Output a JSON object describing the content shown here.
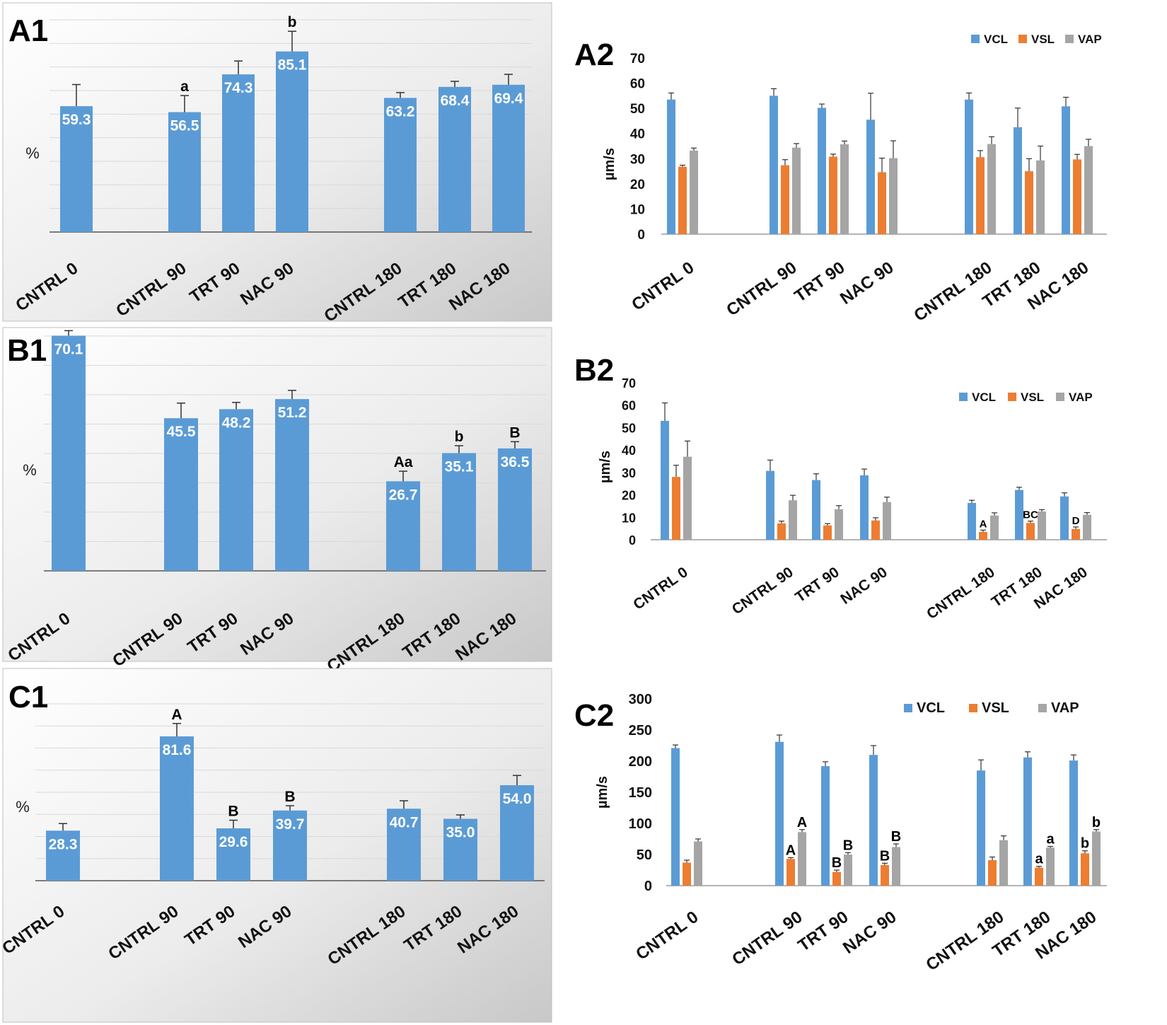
{
  "figure": {
    "colors": {
      "bar": "#5B9BD5",
      "vcl": "#5B9BD5",
      "vsl": "#ED7D31",
      "vap": "#A5A5A5",
      "grid": "#d9d9d9"
    },
    "y_unit_percent": "%",
    "y_unit_speed": "µm/s"
  },
  "chart_data": [
    {
      "id": "A1",
      "type": "bar",
      "title": "A1",
      "ylabel": "%",
      "ylim": [
        0,
        100
      ],
      "categories": [
        "CNTRL 0",
        "CNTRL 90",
        "TRT 90",
        "NAC 90",
        "CNTRL 180",
        "TRT 180",
        "NAC 180"
      ],
      "values": [
        59.3,
        56.5,
        74.3,
        85.1,
        63.2,
        68.4,
        69.4
      ],
      "value_labels": [
        "59.3",
        "56.5",
        "74.3",
        "85.1",
        "63.2",
        "68.4",
        "69.4"
      ],
      "errors": [
        10.2,
        7.8,
        6.3,
        9.5,
        2.5,
        2.6,
        4.9
      ],
      "significance": [
        "",
        "a",
        "",
        "b",
        "",
        "",
        ""
      ]
    },
    {
      "id": "A2",
      "type": "bar",
      "title": "A2",
      "ylabel": "µm/s",
      "ylim": [
        0,
        70
      ],
      "yticks": [
        "0",
        "10",
        "20",
        "30",
        "40",
        "50",
        "60",
        "70"
      ],
      "categories": [
        "CNTRL 0",
        "CNTRL 90",
        "TRT 90",
        "NAC 90",
        "CNTRL 180",
        "TRT 180",
        "NAC 180"
      ],
      "series": [
        {
          "name": "VCL",
          "values": [
            53.5,
            55.0,
            50.2,
            45.5,
            53.5,
            42.5,
            50.8
          ],
          "errors": [
            2.6,
            2.8,
            1.5,
            10.5,
            2.6,
            7.6,
            3.6
          ],
          "labels": [
            "",
            "",
            "",
            "",
            "",
            "",
            ""
          ]
        },
        {
          "name": "VSL",
          "values": [
            26.8,
            27.4,
            30.8,
            24.6,
            30.6,
            25.0,
            29.7
          ],
          "errors": [
            0.6,
            2.2,
            1.0,
            5.6,
            2.6,
            5.0,
            2.0
          ],
          "labels": [
            "",
            "",
            "",
            "",
            "",
            "",
            ""
          ]
        },
        {
          "name": "VAP",
          "values": [
            33.2,
            34.4,
            35.7,
            30.2,
            35.8,
            29.3,
            35.0
          ],
          "errors": [
            1.0,
            1.6,
            1.3,
            6.9,
            2.9,
            5.7,
            2.7
          ],
          "labels": [
            "",
            "",
            "",
            "",
            "",
            "",
            ""
          ]
        }
      ]
    },
    {
      "id": "B1",
      "type": "bar",
      "title": "B1",
      "ylabel": "%",
      "ylim": [
        0,
        70
      ],
      "categories": [
        "CNTRL 0",
        "CNTRL 90",
        "TRT 90",
        "NAC 90",
        "CNTRL 180",
        "TRT 180",
        "NAC 180"
      ],
      "values": [
        70.1,
        45.5,
        48.2,
        51.2,
        26.7,
        35.1,
        36.5
      ],
      "value_labels": [
        "70.1",
        "45.5",
        "48.2",
        "51.2",
        "26.7",
        "35.1",
        "36.5"
      ],
      "errors": [
        1.5,
        4.5,
        2.0,
        2.6,
        3.0,
        2.2,
        2.0
      ],
      "significance": [
        "",
        "",
        "",
        "",
        "Aa",
        "b",
        "B"
      ]
    },
    {
      "id": "B2",
      "type": "bar",
      "title": "B2",
      "ylabel": "µm/s",
      "ylim": [
        0,
        70
      ],
      "yticks": [
        "0",
        "10",
        "20",
        "30",
        "40",
        "50",
        "60",
        "70"
      ],
      "categories": [
        "CNTRL 0",
        "CNTRL 90",
        "TRT 90",
        "NAC 90",
        "CNTRL 180",
        "TRT 180",
        "NAC 180"
      ],
      "series": [
        {
          "name": "VCL",
          "values": [
            53.0,
            30.7,
            26.6,
            28.7,
            16.4,
            22.2,
            19.3
          ],
          "errors": [
            8.0,
            4.8,
            2.8,
            2.8,
            1.2,
            1.2,
            1.6
          ],
          "labels": [
            "",
            "",
            "",
            "",
            "",
            "",
            ""
          ]
        },
        {
          "name": "VSL",
          "values": [
            28.0,
            7.3,
            6.4,
            8.6,
            3.5,
            7.5,
            4.8
          ],
          "errors": [
            5.2,
            1.0,
            0.8,
            1.2,
            0.8,
            0.8,
            0.9
          ],
          "labels": [
            "",
            "",
            "",
            "",
            "A",
            "BC",
            "D"
          ]
        },
        {
          "name": "VAP",
          "values": [
            37.0,
            17.6,
            13.6,
            16.8,
            10.8,
            12.6,
            11.1
          ],
          "errors": [
            7.0,
            2.2,
            1.6,
            2.2,
            1.2,
            0.8,
            1.0
          ],
          "labels": [
            "",
            "",
            "",
            "",
            "",
            "",
            ""
          ]
        }
      ]
    },
    {
      "id": "C1",
      "type": "bar",
      "title": "C1",
      "ylabel": "%",
      "ylim": [
        0,
        100
      ],
      "categories": [
        "CNTRL 0",
        "CNTRL 90",
        "TRT 90",
        "NAC 90",
        "CNTRL 180",
        "TRT 180",
        "NAC 180"
      ],
      "values": [
        28.3,
        81.6,
        29.6,
        39.7,
        40.7,
        35.0,
        54.0
      ],
      "value_labels": [
        "28.3",
        "81.6",
        "29.6",
        "39.7",
        "40.7",
        "35.0",
        "54.0"
      ],
      "errors": [
        4.0,
        7.3,
        4.6,
        2.7,
        4.5,
        2.2,
        5.5
      ],
      "significance": [
        "",
        "A",
        "B",
        "B",
        "",
        "",
        ""
      ]
    },
    {
      "id": "C2",
      "type": "bar",
      "title": "C2",
      "ylabel": "µm/s",
      "ylim": [
        0,
        300
      ],
      "yticks": [
        "0",
        "50",
        "100",
        "150",
        "200",
        "250",
        "300"
      ],
      "categories": [
        "CNTRL 0",
        "CNTRL 90",
        "TRT 90",
        "NAC 90",
        "CNTRL 180",
        "TRT 180",
        "NAC 180"
      ],
      "series": [
        {
          "name": "VCL",
          "values": [
            221,
            231,
            192,
            210,
            185,
            206,
            201
          ],
          "errors": [
            5,
            11,
            7,
            15,
            17,
            9,
            9
          ],
          "labels": [
            "",
            "",
            "",
            "",
            "",
            "",
            ""
          ]
        },
        {
          "name": "VSL",
          "values": [
            37,
            43,
            22,
            33,
            41,
            29,
            52
          ],
          "errors": [
            4,
            2,
            3,
            3,
            5,
            2,
            4
          ],
          "labels": [
            "",
            "A",
            "B",
            "B",
            "",
            "a",
            "b"
          ]
        },
        {
          "name": "VAP",
          "values": [
            71,
            86,
            50,
            62,
            73,
            61,
            87
          ],
          "errors": [
            4,
            4,
            3,
            5,
            7,
            2,
            3
          ],
          "labels": [
            "",
            "A",
            "B",
            "B",
            "",
            "a",
            "b"
          ]
        }
      ]
    }
  ]
}
